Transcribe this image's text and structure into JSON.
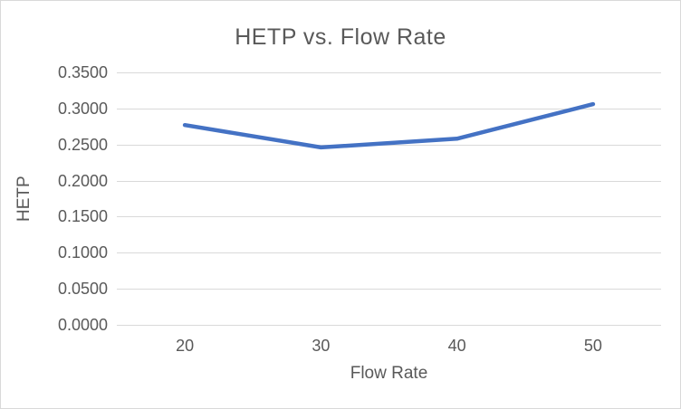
{
  "chart_data": {
    "type": "line",
    "title": "HETP vs. Flow Rate",
    "xlabel": "Flow Rate",
    "ylabel": "HETP",
    "categories": [
      "20",
      "30",
      "40",
      "50"
    ],
    "series": [
      {
        "name": "HETP",
        "values": [
          0.277,
          0.246,
          0.258,
          0.306
        ]
      }
    ],
    "ylim": [
      0.0,
      0.35
    ],
    "y_tick_step": 0.05,
    "y_tick_labels": [
      "0.0000",
      "0.0500",
      "0.1000",
      "0.1500",
      "0.2000",
      "0.2500",
      "0.3000",
      "0.3500"
    ],
    "grid": "horizontal",
    "legend": "none",
    "markers": "none",
    "line_color": "#4472C4",
    "gridline_color": "#D9D9D9",
    "axis_line_color": "#D9D9D9",
    "text_color": "#595959",
    "border_color": "#D9D9D9",
    "background": "#FFFFFF"
  }
}
